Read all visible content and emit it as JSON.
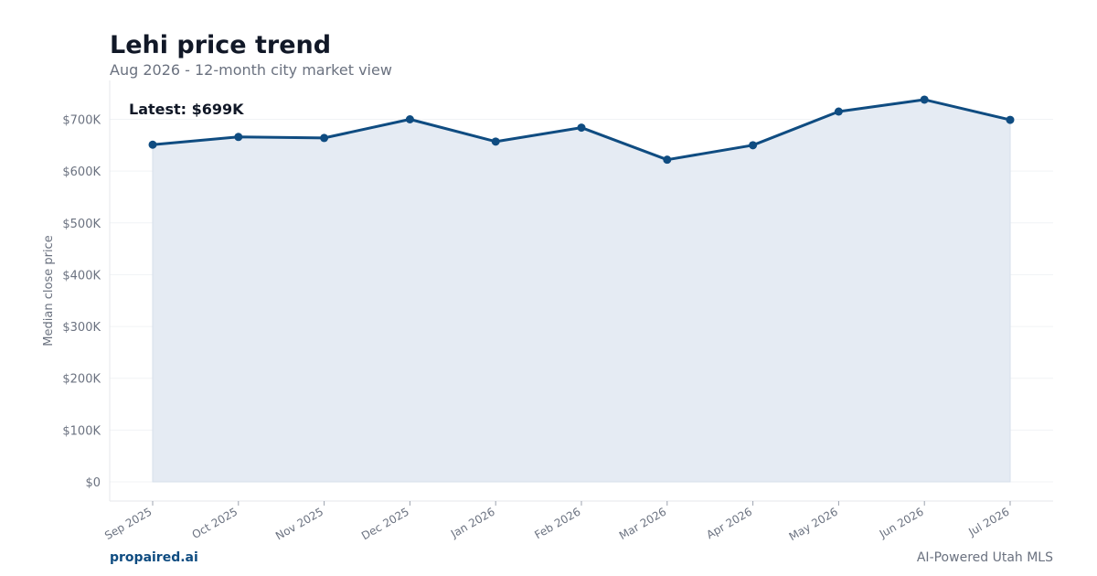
{
  "header": {
    "title": "Lehi price trend",
    "subtitle": "Aug 2026 - 12-month city market view"
  },
  "footer": {
    "brand": "propaired.ai",
    "tagline": "AI-Powered Utah MLS"
  },
  "colors": {
    "line": "#0f4c81",
    "area": "#e5ebf3",
    "axis_text": "#6b7280",
    "grid": "#f1f3f5"
  },
  "chart_data": {
    "type": "area",
    "title": "",
    "xlabel": "",
    "ylabel": "Median close price",
    "annotation": "Latest: $699K",
    "categories": [
      "Sep 2025",
      "Oct 2025",
      "Nov 2025",
      "Dec 2025",
      "Jan 2026",
      "Feb 2026",
      "Mar 2026",
      "Apr 2026",
      "May 2026",
      "Jun 2026",
      "Jul 2026"
    ],
    "series": [
      {
        "values": [
          651000,
          666000,
          664000,
          700000,
          657000,
          684000,
          622000,
          650000,
          715000,
          738000,
          699000
        ]
      }
    ],
    "ylim": [
      0,
      780000
    ],
    "yticks": [
      0,
      100000,
      200000,
      300000,
      400000,
      500000,
      600000,
      700000
    ],
    "yticklabels": [
      "$0",
      "$100K",
      "$200K",
      "$300K",
      "$400K",
      "$500K",
      "$600K",
      "$700K"
    ],
    "grid": true,
    "markers": true
  }
}
